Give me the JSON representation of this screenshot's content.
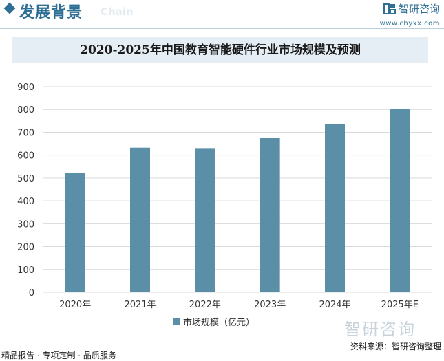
{
  "header": {
    "title": "发展背景",
    "subtitle": "Chain"
  },
  "brand": {
    "name": "智研咨询",
    "url": "www.chyxx.com"
  },
  "watermark": {
    "text": "智研咨询"
  },
  "footer": {
    "left": "精品报告 · 专项定制 · 品质服务",
    "source": "资料来源：智研咨询整理"
  },
  "colors": {
    "bar": "#5b8fa8",
    "header_blue": "#2f6f95",
    "title_bg": "#e6eef5",
    "grid": "#d9d9d9"
  },
  "chart_data": {
    "type": "bar",
    "title": "2020-2025年中国教育智能硬件行业市场规模及预测",
    "categories": [
      "2020年",
      "2021年",
      "2022年",
      "2023年",
      "2024年",
      "2025年E"
    ],
    "series": [
      {
        "name": "市场规模（亿元）",
        "values": [
          522,
          633,
          631,
          676,
          735,
          802
        ]
      }
    ],
    "ylim": [
      0,
      900
    ],
    "yticks": [
      0,
      100,
      200,
      300,
      400,
      500,
      600,
      700,
      800,
      900
    ],
    "grid": true,
    "legend_position": "bottom"
  }
}
